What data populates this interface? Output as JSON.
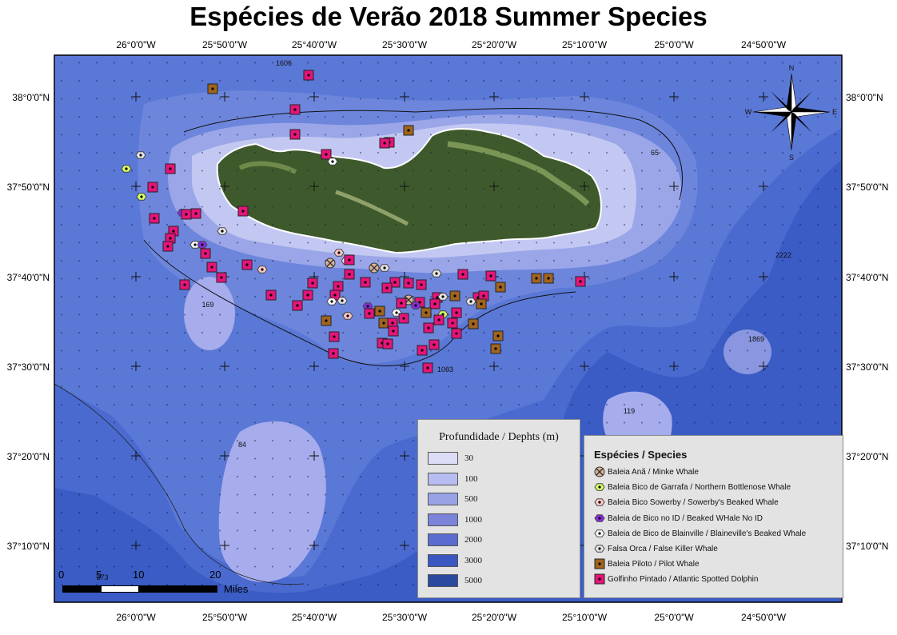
{
  "title": "Espécies de Verão 2018 Summer Species",
  "axes": {
    "top_lon": [
      "26°0'0\"W",
      "25°50'0\"W",
      "25°40'0\"W",
      "25°30'0\"W",
      "25°20'0\"W",
      "25°10'0\"W",
      "25°0'0\"W",
      "24°50'0\"W"
    ],
    "bottom_lon": [
      "26°0'0\"W",
      "25°50'0\"W",
      "25°40'0\"W",
      "25°30'0\"W",
      "25°20'0\"W",
      "25°10'0\"W",
      "25°0'0\"W",
      "24°50'0\"W"
    ],
    "left_lat": [
      "38°0'0\"N",
      "37°50'0\"N",
      "37°40'0\"N",
      "37°30'0\"N",
      "37°20'0\"N",
      "37°10'0\"N"
    ],
    "right_lat": [
      "38°0'0\"N",
      "37°50'0\"N",
      "37°40'0\"N",
      "37°30'0\"N",
      "37°20'0\"N",
      "37°10'0\"N"
    ]
  },
  "depth_labels": [
    "1606",
    "65",
    "2222",
    "169",
    "1869",
    "1063",
    "119",
    "84",
    "373"
  ],
  "compass": {
    "n": "N",
    "s": "S",
    "e": "E",
    "w": "W"
  },
  "scale": {
    "zero": "0",
    "five": "5",
    "ten": "10",
    "twenty": "20",
    "unit": "Miles"
  },
  "depth_legend": {
    "title": "Profundidade / Dephts (m)",
    "items": [
      {
        "label": "30",
        "color": "#dcdcf7"
      },
      {
        "label": "100",
        "color": "#b7bdf0"
      },
      {
        "label": "500",
        "color": "#9aa2e6"
      },
      {
        "label": "1000",
        "color": "#7b84d9"
      },
      {
        "label": "2000",
        "color": "#5a6ccf"
      },
      {
        "label": "3000",
        "color": "#3a56c0"
      },
      {
        "label": "5000",
        "color": "#2a4aa0"
      }
    ]
  },
  "species_legend": {
    "title": "Espécies / Species",
    "items": [
      {
        "key": "minke",
        "label": "Baleia Anã / Minke Whale",
        "fill": "#d8b49a",
        "icon": "minke-whale-icon"
      },
      {
        "key": "bottlenose",
        "label": "Baleia Bico de Garrafa / Northern Bottlenose Whale",
        "fill": "#d9ff66",
        "icon": "bottlenose-whale-icon"
      },
      {
        "key": "sowerby",
        "label": "Baleia Bico Sowerby / Sowerby's Beaked Whale",
        "fill": "#ffc8c8",
        "icon": "sowerby-whale-icon"
      },
      {
        "key": "beaked",
        "label": "Baleia de Bico no ID / Beaked WHale No ID",
        "fill": "#8a2be2",
        "icon": "beaked-whale-icon"
      },
      {
        "key": "blainville",
        "label": "Baleia de Bico de Blainville / Blaineville's Beaked Whale",
        "fill": "#ffffff",
        "icon": "blainville-whale-icon"
      },
      {
        "key": "falseKiller",
        "label": "Falsa Orca / False Killer Whale",
        "fill": "#e6e6e6",
        "icon": "false-killer-whale-icon"
      },
      {
        "key": "pilot",
        "label": "Baleia Piloto / Pilot Whale",
        "fill": "#a0641e",
        "icon": "pilot-whale-icon"
      },
      {
        "key": "dolphin",
        "label": "Golfinho Pintado / Atlantic Spotted Dolphin",
        "fill": "#e6147a",
        "icon": "spotted-dolphin-icon"
      }
    ]
  },
  "colors": {
    "land": "#3e5a2c",
    "ocean_deep": "#3050b8"
  }
}
